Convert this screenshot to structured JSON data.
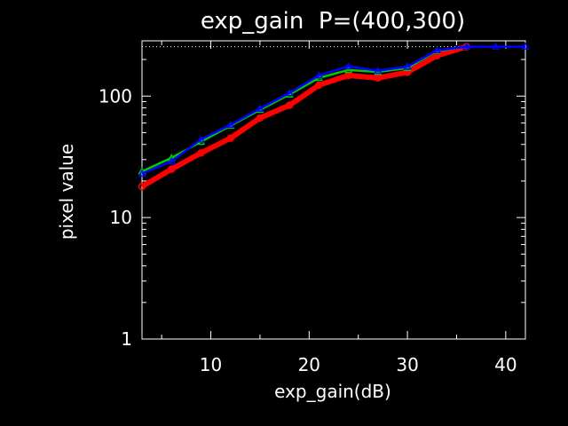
{
  "chart_data": {
    "type": "line",
    "title": "exp_gain  P=(400,300)",
    "xlabel": "exp_gain(dB)",
    "ylabel": "pixel value",
    "xlim": [
      3,
      42
    ],
    "ylim": [
      1,
      285
    ],
    "yscale": "log",
    "x_ticks": [
      10,
      20,
      30,
      40
    ],
    "x_tick_labels": [
      "10",
      "20",
      "30",
      "40"
    ],
    "y_ticks": [
      1,
      10,
      100
    ],
    "y_tick_labels": [
      "1",
      "10",
      "100"
    ],
    "grid": false,
    "legend": "none",
    "reference_line": {
      "y": 255,
      "style": "dotted",
      "color": "#ffffff"
    },
    "x": [
      3,
      6,
      9,
      12,
      15,
      18,
      21,
      24,
      27,
      30,
      33,
      36,
      39,
      42
    ],
    "series": [
      {
        "color": "#ff0000",
        "marker": "circle",
        "values": [
          18,
          25,
          34,
          45,
          66,
          84,
          123,
          148,
          141,
          157,
          215,
          255,
          null,
          null
        ]
      },
      {
        "color": "#00cc00",
        "marker": "triangle",
        "values": [
          24,
          31,
          42,
          57,
          77,
          103,
          141,
          164,
          158,
          170,
          235,
          255,
          null,
          null
        ]
      },
      {
        "color": "#0000ff",
        "marker": "triangle",
        "values": [
          23,
          29,
          44,
          58,
          79,
          106,
          148,
          176,
          162,
          175,
          238,
          255,
          255,
          255
        ]
      }
    ]
  },
  "colors": {
    "background": "#000000",
    "axes": "#ffffff",
    "text": "#ffffff"
  }
}
